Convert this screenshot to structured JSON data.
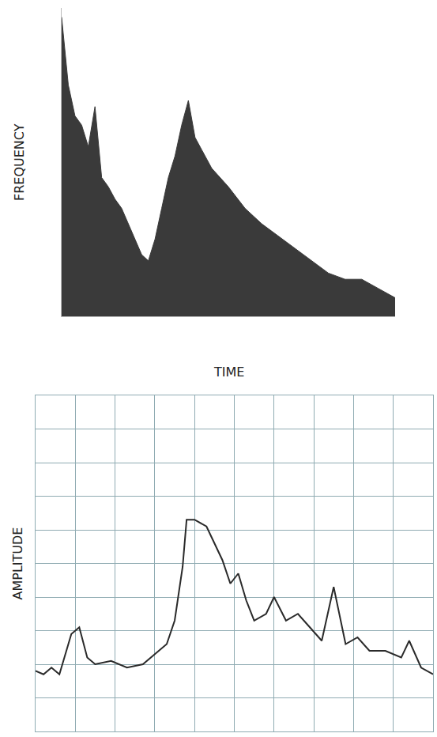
{
  "chart_data": [
    {
      "type": "area",
      "x_label": "TIME",
      "y_label": "FREQUENCY",
      "x": [
        0,
        2,
        4,
        6,
        8,
        10,
        12,
        14,
        16,
        18,
        20,
        22,
        24,
        26,
        28,
        30,
        32,
        34,
        36,
        38,
        40,
        42,
        45,
        50,
        55,
        60,
        65,
        70,
        75,
        80,
        85,
        90,
        95,
        100
      ],
      "values": [
        97,
        75,
        65,
        62,
        55,
        68,
        45,
        42,
        38,
        35,
        30,
        25,
        20,
        18,
        25,
        35,
        45,
        52,
        62,
        70,
        58,
        54,
        48,
        42,
        35,
        30,
        26,
        22,
        18,
        14,
        12,
        12,
        9,
        6
      ],
      "color": "#3a3a3a",
      "xlim": [
        0,
        100
      ],
      "ylim": [
        0,
        100
      ],
      "grid": false,
      "tick_labels": false
    },
    {
      "type": "line",
      "y_label": "AMPLITUDE",
      "x": [
        0,
        2,
        4,
        6,
        9,
        11,
        13,
        15,
        19,
        23,
        27,
        31,
        33,
        35,
        37,
        38,
        40,
        43,
        45,
        47,
        49,
        51,
        53,
        55,
        58,
        60,
        63,
        66,
        69,
        72,
        75,
        78,
        81,
        84,
        88,
        92,
        94,
        97,
        100
      ],
      "values": [
        18,
        17,
        19,
        17,
        29,
        31,
        22,
        20,
        21,
        19,
        20,
        24,
        26,
        33,
        49,
        63,
        63,
        61,
        56,
        51,
        44,
        47,
        39,
        33,
        35,
        40,
        33,
        35,
        31,
        27,
        43,
        26,
        28,
        24,
        24,
        22,
        27,
        19,
        17
      ],
      "color": "#2a2a2a",
      "xlim": [
        0,
        100
      ],
      "ylim": [
        0,
        100
      ],
      "xticks": [
        0,
        10,
        20,
        30,
        40,
        50,
        60,
        70,
        80,
        90,
        100
      ],
      "yticks": [
        0,
        10,
        20,
        30,
        40,
        50,
        60,
        70,
        80,
        90,
        100
      ],
      "grid": true,
      "tick_labels": false
    }
  ]
}
